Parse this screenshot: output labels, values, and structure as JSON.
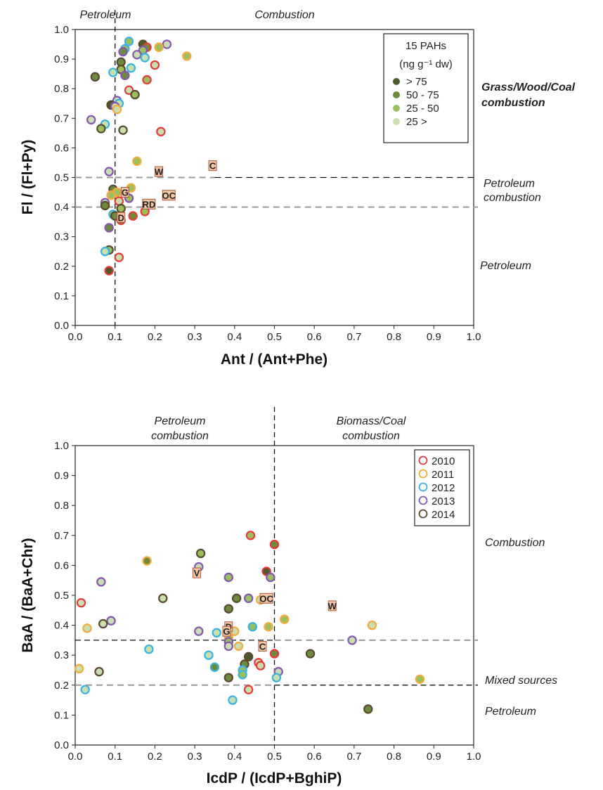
{
  "chart_data": [
    {
      "type": "scatter",
      "xlabel": "Ant / (Ant+Phe)",
      "ylabel": "Fl / (Fl+Py)",
      "xlim": [
        0,
        1.0
      ],
      "ylim": [
        0,
        1.0
      ],
      "xticks": [
        "0.0",
        "0.1",
        "0.2",
        "0.3",
        "0.4",
        "0.5",
        "0.6",
        "0.7",
        "0.8",
        "0.9",
        "1.0"
      ],
      "yticks": [
        "0.0",
        "0.1",
        "0.2",
        "0.3",
        "0.4",
        "0.5",
        "0.6",
        "0.7",
        "0.8",
        "0.9",
        "1.0"
      ],
      "top_labels": [
        "Petroleum",
        "Combustion"
      ],
      "right_labels": [
        {
          "lines": [
            "Grass/Wood/Coal",
            "combustion"
          ],
          "y": 0.78,
          "bold": true
        },
        {
          "lines": [
            "Petroleum",
            "combustion"
          ],
          "y": 0.45,
          "bold": false
        },
        {
          "lines": [
            "Petroleum"
          ],
          "y": 0.2,
          "bold": false
        }
      ],
      "vline": 0.1,
      "hlines": [
        0.5,
        0.4
      ],
      "legend": {
        "title_line1": "15 PAHs",
        "title_line2": "(ng g⁻¹ dw)",
        "entries": [
          {
            "label": "> 75",
            "color": "#4d5a2a"
          },
          {
            "label": "50 - 75",
            "color": "#6f8a3c"
          },
          {
            "label": "25 - 50",
            "color": "#9cbf5e"
          },
          {
            "label": "25 >",
            "color": "#c9dfb0"
          }
        ]
      },
      "year_colors": {
        "2010": "#e63a3a",
        "2011": "#f4aa3c",
        "2012": "#39b3e3",
        "2013": "#8457b3",
        "2014": "#5a4a32"
      },
      "points": [
        {
          "x": 0.17,
          "y": 0.95,
          "year": "2014",
          "c": 1
        },
        {
          "x": 0.135,
          "y": 0.96,
          "year": "2012",
          "c": 3
        },
        {
          "x": 0.23,
          "y": 0.95,
          "year": "2013",
          "c": 4
        },
        {
          "x": 0.21,
          "y": 0.94,
          "year": "2011",
          "c": 3
        },
        {
          "x": 0.18,
          "y": 0.94,
          "year": "2010",
          "c": 2
        },
        {
          "x": 0.125,
          "y": 0.935,
          "year": "2012",
          "c": 3
        },
        {
          "x": 0.17,
          "y": 0.93,
          "year": "2013",
          "c": 3
        },
        {
          "x": 0.12,
          "y": 0.925,
          "year": "2013",
          "c": 2
        },
        {
          "x": 0.155,
          "y": 0.915,
          "year": "2013",
          "c": 4
        },
        {
          "x": 0.28,
          "y": 0.91,
          "year": "2011",
          "c": 3
        },
        {
          "x": 0.175,
          "y": 0.905,
          "year": "2012",
          "c": 4
        },
        {
          "x": 0.115,
          "y": 0.89,
          "year": "2014",
          "c": 2
        },
        {
          "x": 0.2,
          "y": 0.88,
          "year": "2010",
          "c": 4
        },
        {
          "x": 0.14,
          "y": 0.87,
          "year": "2012",
          "c": 4
        },
        {
          "x": 0.115,
          "y": 0.865,
          "year": "2014",
          "c": 3
        },
        {
          "x": 0.095,
          "y": 0.855,
          "year": "2012",
          "c": 4
        },
        {
          "x": 0.125,
          "y": 0.845,
          "year": "2013",
          "c": 2
        },
        {
          "x": 0.05,
          "y": 0.84,
          "year": "2014",
          "c": 2
        },
        {
          "x": 0.18,
          "y": 0.83,
          "year": "2010",
          "c": 3
        },
        {
          "x": 0.135,
          "y": 0.795,
          "year": "2010",
          "c": 4
        },
        {
          "x": 0.15,
          "y": 0.78,
          "year": "2014",
          "c": 3
        },
        {
          "x": 0.105,
          "y": 0.76,
          "year": "2013",
          "c": 4
        },
        {
          "x": 0.11,
          "y": 0.75,
          "year": "2012",
          "c": 4
        },
        {
          "x": 0.09,
          "y": 0.745,
          "year": "2014",
          "c": 1
        },
        {
          "x": 0.1,
          "y": 0.74,
          "year": "2013",
          "c": 4
        },
        {
          "x": 0.105,
          "y": 0.73,
          "year": "2011",
          "c": 4
        },
        {
          "x": 0.04,
          "y": 0.695,
          "year": "2013",
          "c": 4
        },
        {
          "x": 0.075,
          "y": 0.68,
          "year": "2012",
          "c": 4
        },
        {
          "x": 0.065,
          "y": 0.665,
          "year": "2014",
          "c": 3
        },
        {
          "x": 0.12,
          "y": 0.66,
          "year": "2014",
          "c": 4
        },
        {
          "x": 0.215,
          "y": 0.655,
          "year": "2010",
          "c": 4
        },
        {
          "x": 0.155,
          "y": 0.555,
          "year": "2011",
          "c": 3
        },
        {
          "x": 0.085,
          "y": 0.52,
          "year": "2013",
          "c": 4
        },
        {
          "x": 0.14,
          "y": 0.465,
          "year": "2011",
          "c": 3
        },
        {
          "x": 0.095,
          "y": 0.46,
          "year": "2014",
          "c": 2
        },
        {
          "x": 0.105,
          "y": 0.45,
          "year": "2011",
          "c": 3
        },
        {
          "x": 0.09,
          "y": 0.44,
          "year": "2011",
          "c": 3
        },
        {
          "x": 0.135,
          "y": 0.43,
          "year": "2013",
          "c": 3
        },
        {
          "x": 0.11,
          "y": 0.42,
          "year": "2010",
          "c": 4
        },
        {
          "x": 0.075,
          "y": 0.415,
          "year": "2013",
          "c": 4
        },
        {
          "x": 0.075,
          "y": 0.405,
          "year": "2014",
          "c": 2
        },
        {
          "x": 0.115,
          "y": 0.395,
          "year": "2014",
          "c": 3
        },
        {
          "x": 0.175,
          "y": 0.385,
          "year": "2010",
          "c": 3
        },
        {
          "x": 0.095,
          "y": 0.375,
          "year": "2012",
          "c": 3
        },
        {
          "x": 0.1,
          "y": 0.37,
          "year": "2014",
          "c": 2
        },
        {
          "x": 0.145,
          "y": 0.37,
          "year": "2010",
          "c": 2
        },
        {
          "x": 0.115,
          "y": 0.355,
          "year": "2010",
          "c": 2
        },
        {
          "x": 0.085,
          "y": 0.33,
          "year": "2013",
          "c": 2
        },
        {
          "x": 0.085,
          "y": 0.255,
          "year": "2014",
          "c": 3
        },
        {
          "x": 0.075,
          "y": 0.25,
          "year": "2012",
          "c": 4
        },
        {
          "x": 0.11,
          "y": 0.23,
          "year": "2010",
          "c": 4
        },
        {
          "x": 0.085,
          "y": 0.185,
          "year": "2010",
          "c": 1
        }
      ],
      "markers": [
        {
          "label": "C",
          "x": 0.345,
          "y": 0.54
        },
        {
          "label": "W",
          "x": 0.21,
          "y": 0.52
        },
        {
          "label": "G",
          "x": 0.125,
          "y": 0.45
        },
        {
          "label": "OC",
          "x": 0.235,
          "y": 0.44
        },
        {
          "label": "RD",
          "x": 0.185,
          "y": 0.41
        },
        {
          "label": "D",
          "x": 0.115,
          "y": 0.365
        }
      ]
    },
    {
      "type": "scatter",
      "xlabel": "IcdP / (IcdP+BghiP)",
      "ylabel": "BaA / (BaA+Chr)",
      "xlim": [
        0,
        1.0
      ],
      "ylim": [
        0,
        1.0
      ],
      "xticks": [
        "0.0",
        "0.1",
        "0.2",
        "0.3",
        "0.4",
        "0.5",
        "0.6",
        "0.7",
        "0.8",
        "0.9",
        "1.0"
      ],
      "yticks": [
        "0.0",
        "0.1",
        "0.2",
        "0.3",
        "0.4",
        "0.5",
        "0.6",
        "0.7",
        "0.8",
        "0.9",
        "1.0"
      ],
      "top_labels": [
        {
          "lines": [
            "Petroleum",
            "combustion"
          ],
          "x": 0.26
        },
        {
          "lines": [
            "Biomass/Coal",
            "combustion"
          ],
          "x": 0.745
        }
      ],
      "right_labels": [
        {
          "lines": [
            "Combustion"
          ],
          "y": 0.73
        },
        {
          "lines": [
            "Mixed sources"
          ],
          "y": 0.28
        },
        {
          "lines": [
            "Petroleum"
          ],
          "y": 0.13
        }
      ],
      "vline": 0.5,
      "hlines": [
        0.35,
        0.2
      ],
      "legend": {
        "entries": [
          {
            "label": "2010",
            "color": "#e63a3a"
          },
          {
            "label": "2011",
            "color": "#f4aa3c"
          },
          {
            "label": "2012",
            "color": "#39b3e3"
          },
          {
            "label": "2013",
            "color": "#8457b3"
          },
          {
            "label": "2014",
            "color": "#5a4a32"
          }
        ]
      },
      "points": [
        {
          "x": 0.44,
          "y": 0.7,
          "year": "2010",
          "c": 3
        },
        {
          "x": 0.5,
          "y": 0.67,
          "year": "2010",
          "c": 2
        },
        {
          "x": 0.315,
          "y": 0.64,
          "year": "2014",
          "c": 3
        },
        {
          "x": 0.18,
          "y": 0.615,
          "year": "2011",
          "c": 2
        },
        {
          "x": 0.31,
          "y": 0.595,
          "year": "2013",
          "c": 4
        },
        {
          "x": 0.48,
          "y": 0.58,
          "year": "2010",
          "c": 1
        },
        {
          "x": 0.385,
          "y": 0.56,
          "year": "2013",
          "c": 3
        },
        {
          "x": 0.49,
          "y": 0.56,
          "year": "2013",
          "c": 3
        },
        {
          "x": 0.065,
          "y": 0.545,
          "year": "2013",
          "c": 4
        },
        {
          "x": 0.22,
          "y": 0.49,
          "year": "2014",
          "c": 4
        },
        {
          "x": 0.405,
          "y": 0.49,
          "year": "2014",
          "c": 2
        },
        {
          "x": 0.435,
          "y": 0.49,
          "year": "2013",
          "c": 3
        },
        {
          "x": 0.465,
          "y": 0.485,
          "year": "2011",
          "c": 4
        },
        {
          "x": 0.015,
          "y": 0.475,
          "year": "2010",
          "c": 4
        },
        {
          "x": 0.385,
          "y": 0.455,
          "year": "2014",
          "c": 2
        },
        {
          "x": 0.525,
          "y": 0.42,
          "year": "2011",
          "c": 3
        },
        {
          "x": 0.09,
          "y": 0.415,
          "year": "2013",
          "c": 4
        },
        {
          "x": 0.07,
          "y": 0.405,
          "year": "2014",
          "c": 4
        },
        {
          "x": 0.745,
          "y": 0.4,
          "year": "2011",
          "c": 4
        },
        {
          "x": 0.03,
          "y": 0.39,
          "year": "2011",
          "c": 4
        },
        {
          "x": 0.445,
          "y": 0.395,
          "year": "2012",
          "c": 3
        },
        {
          "x": 0.485,
          "y": 0.395,
          "year": "2011",
          "c": 3
        },
        {
          "x": 0.4,
          "y": 0.38,
          "year": "2011",
          "c": 4
        },
        {
          "x": 0.31,
          "y": 0.38,
          "year": "2013",
          "c": 4
        },
        {
          "x": 0.355,
          "y": 0.375,
          "year": "2012",
          "c": 4
        },
        {
          "x": 0.385,
          "y": 0.36,
          "year": "2011",
          "c": 3
        },
        {
          "x": 0.385,
          "y": 0.345,
          "year": "2013",
          "c": 3
        },
        {
          "x": 0.41,
          "y": 0.33,
          "year": "2011",
          "c": 4
        },
        {
          "x": 0.385,
          "y": 0.33,
          "year": "2013",
          "c": 4
        },
        {
          "x": 0.695,
          "y": 0.35,
          "year": "2013",
          "c": 4
        },
        {
          "x": 0.185,
          "y": 0.32,
          "year": "2012",
          "c": 4
        },
        {
          "x": 0.59,
          "y": 0.305,
          "year": "2014",
          "c": 2
        },
        {
          "x": 0.5,
          "y": 0.305,
          "year": "2010",
          "c": 2
        },
        {
          "x": 0.335,
          "y": 0.3,
          "year": "2012",
          "c": 4
        },
        {
          "x": 0.435,
          "y": 0.295,
          "year": "2014",
          "c": 1
        },
        {
          "x": 0.46,
          "y": 0.275,
          "year": "2010",
          "c": 4
        },
        {
          "x": 0.425,
          "y": 0.27,
          "year": "2014",
          "c": 2
        },
        {
          "x": 0.465,
          "y": 0.265,
          "year": "2010",
          "c": 4
        },
        {
          "x": 0.35,
          "y": 0.26,
          "year": "2012",
          "c": 2
        },
        {
          "x": 0.01,
          "y": 0.255,
          "year": "2011",
          "c": 4
        },
        {
          "x": 0.42,
          "y": 0.25,
          "year": "2012",
          "c": 3
        },
        {
          "x": 0.06,
          "y": 0.245,
          "year": "2014",
          "c": 4
        },
        {
          "x": 0.51,
          "y": 0.245,
          "year": "2013",
          "c": 4
        },
        {
          "x": 0.42,
          "y": 0.235,
          "year": "2012",
          "c": 3
        },
        {
          "x": 0.385,
          "y": 0.225,
          "year": "2014",
          "c": 2
        },
        {
          "x": 0.505,
          "y": 0.225,
          "year": "2012",
          "c": 4
        },
        {
          "x": 0.865,
          "y": 0.22,
          "year": "2011",
          "c": 3
        },
        {
          "x": 0.025,
          "y": 0.185,
          "year": "2012",
          "c": 4
        },
        {
          "x": 0.435,
          "y": 0.185,
          "year": "2010",
          "c": 4
        },
        {
          "x": 0.395,
          "y": 0.15,
          "year": "2012",
          "c": 4
        },
        {
          "x": 0.735,
          "y": 0.12,
          "year": "2014",
          "c": 2
        }
      ],
      "markers": [
        {
          "label": "V",
          "x": 0.305,
          "y": 0.575
        },
        {
          "label": "OC",
          "x": 0.48,
          "y": 0.49
        },
        {
          "label": "W",
          "x": 0.645,
          "y": 0.465
        },
        {
          "label": "D",
          "x": 0.385,
          "y": 0.395
        },
        {
          "label": "G",
          "x": 0.38,
          "y": 0.38
        },
        {
          "label": "C",
          "x": 0.47,
          "y": 0.33
        }
      ]
    }
  ]
}
